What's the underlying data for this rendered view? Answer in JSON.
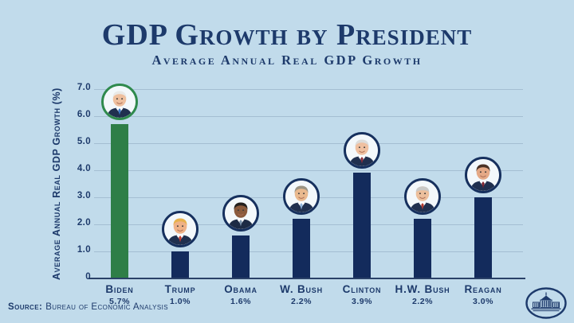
{
  "header": {
    "title": "GDP Growth by President",
    "subtitle": "Average Annual Real GDP Growth"
  },
  "chart_data": {
    "type": "bar",
    "title": "GDP Growth by President",
    "subtitle": "Average Annual Real GDP Growth",
    "ylabel": "Average Annual Real GDP Growth (%)",
    "ylim": [
      0,
      7.0
    ],
    "yticks": [
      0,
      1.0,
      2.0,
      3.0,
      4.0,
      5.0,
      6.0,
      7.0
    ],
    "ytick_labels": [
      "0",
      "1.0",
      "2.0",
      "3.0",
      "4.0",
      "5.0",
      "6.0",
      "7.0"
    ],
    "grid": "horizontal",
    "legend": "none",
    "categories": [
      "Biden",
      "Trump",
      "Obama",
      "W. Bush",
      "Clinton",
      "H.W. Bush",
      "Reagan"
    ],
    "values": [
      5.7,
      1.0,
      1.6,
      2.2,
      3.9,
      2.2,
      3.0
    ],
    "value_labels": [
      "5.7%",
      "1.0%",
      "1.6%",
      "2.2%",
      "3.9%",
      "2.2%",
      "3.0%"
    ],
    "presidents": [
      {
        "name": "Biden",
        "value": 5.7,
        "value_label": "5.7%",
        "bar_color": "#2e7e47",
        "ring_color": "#2f8a4d",
        "hair": "#e9e9e7",
        "skin": "#eebf9e",
        "suit": "#20304f",
        "tie": "#3a78c2",
        "bald": false
      },
      {
        "name": "Trump",
        "value": 1.0,
        "value_label": "1.0%",
        "bar_color": "#132b5c",
        "ring_color": "#16305e",
        "hair": "#e7b14c",
        "skin": "#efb287",
        "suit": "#20304f",
        "tie": "#c33b2e",
        "bald": false
      },
      {
        "name": "Obama",
        "value": 1.6,
        "value_label": "1.6%",
        "bar_color": "#132b5c",
        "ring_color": "#16305e",
        "hair": "#23201e",
        "skin": "#8a5a3c",
        "suit": "#1d2b45",
        "tie": "#7a93ad",
        "bald": false
      },
      {
        "name": "W. Bush",
        "value": 2.2,
        "value_label": "2.2%",
        "bar_color": "#132b5c",
        "ring_color": "#16305e",
        "hair": "#9b9484",
        "skin": "#e9b98e",
        "suit": "#20304f",
        "tie": "#8fb3d9",
        "bald": false
      },
      {
        "name": "Clinton",
        "value": 3.9,
        "value_label": "3.9%",
        "bar_color": "#132b5c",
        "ring_color": "#16305e",
        "hair": "#dcdcda",
        "skin": "#efc0a0",
        "suit": "#20304f",
        "tie": "#8c2f3b",
        "bald": false
      },
      {
        "name": "H.W. Bush",
        "value": 2.2,
        "value_label": "2.2%",
        "bar_color": "#132b5c",
        "ring_color": "#16305e",
        "hair": "#c9c9c7",
        "skin": "#ecbf9c",
        "suit": "#20304f",
        "tie": "#b03a30",
        "bald": true
      },
      {
        "name": "Reagan",
        "value": 3.0,
        "value_label": "3.0%",
        "bar_color": "#132b5c",
        "ring_color": "#16305e",
        "hair": "#4a3226",
        "skin": "#e5a986",
        "suit": "#20304f",
        "tie": "#7e2430",
        "bald": false
      }
    ]
  },
  "footer": {
    "source_label": "Source:",
    "source_text": "Bureau of Economic Analysis",
    "logo": "white-house-seal-icon"
  },
  "colors": {
    "background": "#c1dbeb",
    "navy_text": "#1d3a6b",
    "bar_navy": "#132b5c",
    "bar_green": "#2e7e47",
    "gridline": "#a4bed2",
    "axis_line": "#2a4168",
    "portrait_bg": "#f3f8fb"
  }
}
